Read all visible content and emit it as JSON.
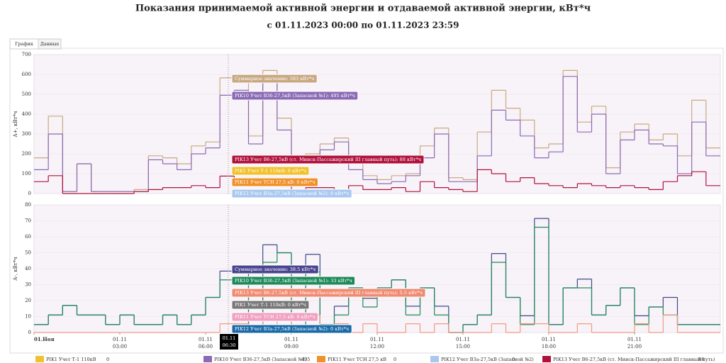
{
  "title": "Показания принимаемой активной энергии и отдаваемой активной энергии, кВт*ч",
  "subtitle": "с 01.11.2023 00:00 по 01.11.2023 23:59",
  "tabs": [
    "График",
    "Данные"
  ],
  "crosshair": "01.11\n06:30",
  "legend": [
    {
      "name": "PIK1 Учет Т-1 110кВ",
      "color": "#f2c12e",
      "value": 0
    },
    {
      "name": "PIK10 Учет В36-27,5кВ (Запасной №1)",
      "color": "#8a6ab5",
      "value": 495
    },
    {
      "name": "PIK11 Учет ТСН 27,5 кВ",
      "color": "#f0922b",
      "value": 0
    },
    {
      "name": "PIK12 Учет В3а-27,5кВ (Запасной №2)",
      "color": "#a8c8f0",
      "value": 0
    },
    {
      "name": "PIK13 Учет В6-27,5кВ (ст. Минск-Пассажирский III главный путь)",
      "color": "#b0123c",
      "value": 88
    }
  ],
  "chart_data": [
    {
      "type": "step",
      "y_label": "А+, кВт*ч",
      "xlim": [
        0,
        24
      ],
      "ylim": [
        0,
        700
      ],
      "yticks": [
        0,
        100,
        200,
        300,
        400,
        500,
        600,
        700
      ],
      "x": [
        0,
        0.5,
        1,
        1.5,
        2,
        2.5,
        3,
        3.5,
        4,
        4.5,
        5,
        5.5,
        6,
        6.5,
        7,
        7.5,
        8,
        8.5,
        9,
        9.5,
        10,
        10.5,
        11,
        11.5,
        12,
        12.5,
        13,
        13.5,
        14,
        14.5,
        15,
        15.5,
        16,
        16.5,
        17,
        17.5,
        18,
        18.5,
        19,
        19.5,
        20,
        20.5,
        21,
        21.5,
        22,
        22.5,
        23,
        23.5
      ],
      "series": [
        {
          "name": "Суммарное значение",
          "color": "#c8a882",
          "values": [
            180,
            390,
            10,
            150,
            10,
            10,
            10,
            20,
            190,
            180,
            150,
            240,
            260,
            583,
            580,
            290,
            620,
            380,
            180,
            200,
            250,
            280,
            160,
            90,
            70,
            90,
            100,
            240,
            330,
            80,
            70,
            310,
            520,
            430,
            370,
            230,
            250,
            620,
            360,
            440,
            130,
            310,
            350,
            270,
            300,
            190,
            470,
            230
          ]
        },
        {
          "name": "PIK10 Учет В36-27,5кВ (Запасной №1)",
          "color": "#8a6ab5",
          "values": [
            120,
            300,
            10,
            150,
            10,
            10,
            10,
            10,
            170,
            150,
            120,
            200,
            230,
            495,
            520,
            250,
            560,
            320,
            160,
            170,
            220,
            260,
            120,
            70,
            50,
            60,
            90,
            180,
            300,
            60,
            60,
            190,
            420,
            370,
            290,
            180,
            210,
            590,
            310,
            400,
            100,
            270,
            320,
            250,
            240,
            100,
            360,
            190
          ]
        },
        {
          "name": "PIK13 Учет В6-27,5кВ (ст. Минск-Пассажирский III главный путь)",
          "color": "#b0123c",
          "values": [
            60,
            90,
            0,
            0,
            0,
            0,
            0,
            10,
            20,
            30,
            30,
            40,
            30,
            88,
            60,
            40,
            60,
            60,
            20,
            30,
            30,
            20,
            40,
            20,
            20,
            30,
            10,
            60,
            30,
            20,
            10,
            120,
            100,
            60,
            80,
            50,
            40,
            30,
            50,
            40,
            30,
            40,
            30,
            20,
            60,
            90,
            110,
            40
          ]
        }
      ],
      "tooltips": [
        {
          "text": "Суммарное значение: 583 кВт*ч",
          "color": "#c8a882"
        },
        {
          "text": "PIK10 Учет В36-27,5кВ (Запасной №1): 495 кВт*ч",
          "color": "#8a6ab5"
        },
        {
          "text": "PIK13 Учет В6-27,5кВ (ст. Минск-Пассажирский III главный путь): 88 кВт*ч",
          "color": "#b0123c"
        },
        {
          "text": "PIK1 Учет Т-1 110кВ: 0 кВт*ч",
          "color": "#f2c12e"
        },
        {
          "text": "PIK11 Учет ТСН 27,5 кВ: 0 кВт*ч",
          "color": "#f0922b"
        },
        {
          "text": "PIK12 Учет В3а-27,5кВ (Запасной №2): 0 кВт*ч",
          "color": "#a8c8f0"
        }
      ]
    },
    {
      "type": "step",
      "y_label": "А-, кВт*ч",
      "xlim": [
        0,
        24
      ],
      "ylim": [
        0,
        80
      ],
      "yticks": [
        0,
        10,
        20,
        30,
        40,
        50,
        60,
        70,
        80
      ],
      "xticks": [
        {
          "value": 0,
          "label": "01.Ноя"
        },
        {
          "value": 3,
          "label": "01.11\n03:00"
        },
        {
          "value": 6,
          "label": "01.11\n06:00"
        },
        {
          "value": 9,
          "label": "01.11\n09:00"
        },
        {
          "value": 12,
          "label": "01.11\n12:00"
        },
        {
          "value": 15,
          "label": "01.11\n15:00"
        },
        {
          "value": 18,
          "label": "01.11\n18:00"
        },
        {
          "value": 21,
          "label": "01.11\n21:00"
        }
      ],
      "x": [
        0,
        0.5,
        1,
        1.5,
        2,
        2.5,
        3,
        3.5,
        4,
        4.5,
        5,
        5.5,
        6,
        6.5,
        7,
        7.5,
        8,
        8.5,
        9,
        9.5,
        10,
        10.5,
        11,
        11.5,
        12,
        12.5,
        13,
        13.5,
        14,
        14.5,
        15,
        15.5,
        16,
        16.5,
        17,
        17.5,
        18,
        18.5,
        19,
        19.5,
        20,
        20.5,
        21,
        21.5,
        22,
        22.5,
        23,
        23.5
      ],
      "series": [
        {
          "name": "Суммарное значение",
          "color": "#3f4a8a",
          "values": [
            5,
            11,
            17,
            11,
            11,
            5,
            11,
            5,
            5,
            11,
            5,
            11,
            22,
            38.5,
            38.5,
            0,
            55,
            50,
            11,
            49,
            5,
            16.5,
            28,
            21.5,
            28,
            33,
            16.5,
            28,
            16.5,
            0,
            5,
            11,
            49.5,
            22,
            10.5,
            71.5,
            5,
            28,
            33.5,
            11,
            17,
            28,
            10.5,
            16,
            22,
            5,
            5,
            5
          ]
        },
        {
          "name": "PIK10 Учет В36-27,5кВ (Запасной №1)",
          "color": "#1e8a5a",
          "values": [
            5,
            11,
            17,
            11,
            11,
            5,
            11,
            5,
            5,
            11,
            5,
            11,
            22,
            33,
            33,
            0,
            44,
            50,
            0,
            38,
            5,
            11,
            28,
            16,
            28,
            33,
            11,
            28,
            11,
            0,
            5,
            11,
            44,
            22,
            5,
            66,
            5,
            28,
            28,
            11,
            17,
            28,
            5,
            16,
            11,
            5,
            5,
            5
          ]
        },
        {
          "name": "PIK13 Учет В6-27,5кВ (ст. Минск-Пассажирский III главный путь)",
          "color": "#f29b82",
          "values": [
            0,
            0,
            0,
            0,
            0,
            0,
            0,
            0,
            0,
            0,
            0,
            0,
            0,
            5.5,
            5.5,
            0,
            11,
            0,
            11,
            11,
            0,
            5.5,
            0,
            5.5,
            0,
            0,
            5.5,
            0,
            5.5,
            0,
            0,
            0,
            5.5,
            0,
            5.5,
            5.5,
            0,
            0,
            5.5,
            0,
            0,
            0,
            5.5,
            0,
            11,
            0,
            0,
            0
          ]
        }
      ],
      "tooltips": [
        {
          "text": "Суммарное значение: 38.5 кВт*ч",
          "color": "#4a4490"
        },
        {
          "text": "PIK10 Учет В36-27,5кВ (Запасной №1): 33 кВт*ч",
          "color": "#1e8a5a"
        },
        {
          "text": "PIK13 Учет В6-27,5кВ (ст. Минск-Пассажирский III главный путь): 5.5 кВт*ч",
          "color": "#f08a70"
        },
        {
          "text": "PIK1 Учет Т-1 110кВ: 0 кВт*ч",
          "color": "#777"
        },
        {
          "text": "PIK11 Учет ТСН 27,5 кВ: 0 кВт*ч",
          "color": "#f0a0c0"
        },
        {
          "text": "PIK12 Учет В3а-27,5кВ (Запасной №2): 0 кВт*ч",
          "color": "#1a6aa8"
        }
      ]
    }
  ]
}
